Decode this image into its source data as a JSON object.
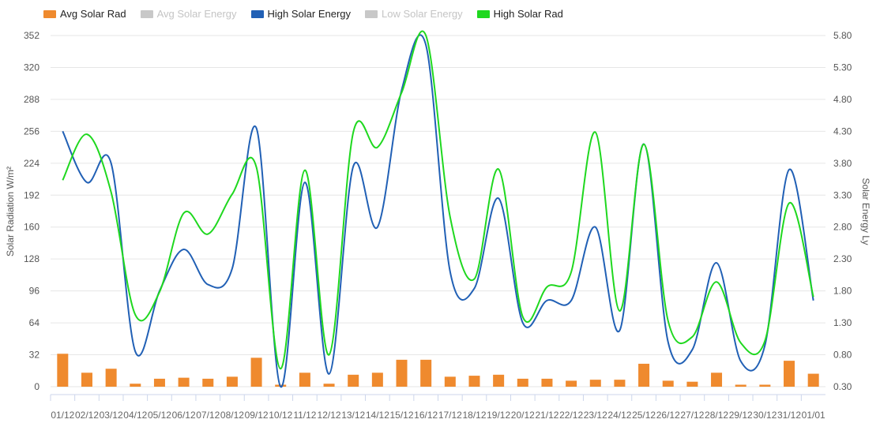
{
  "legend": [
    {
      "name": "Avg Solar Rad",
      "color": "#ef8a2e",
      "visible": true
    },
    {
      "name": "Avg Solar Energy",
      "color": "#c8c8c8",
      "visible": false
    },
    {
      "name": "High Solar Energy",
      "color": "#2160b5",
      "visible": true
    },
    {
      "name": "Low Solar Energy",
      "color": "#c8c8c8",
      "visible": false
    },
    {
      "name": "High Solar Rad",
      "color": "#1fd81f",
      "visible": true
    }
  ],
  "chart_data": {
    "type": "bar+line",
    "categories": [
      "01/12",
      "02/12",
      "03/12",
      "04/12",
      "05/12",
      "06/12",
      "07/12",
      "08/12",
      "09/12",
      "10/12",
      "11/12",
      "12/12",
      "13/12",
      "14/12",
      "15/12",
      "16/12",
      "17/12",
      "18/12",
      "19/12",
      "20/12",
      "21/12",
      "22/12",
      "23/12",
      "24/12",
      "25/12",
      "26/12",
      "27/12",
      "28/12",
      "29/12",
      "30/12",
      "31/12",
      "01/01"
    ],
    "ylabel_left": "Solar Radiation W/m²",
    "ylabel_right": "Solar Energy Ly",
    "ylim_left": [
      0,
      352
    ],
    "yticks_left": [
      "0",
      "32",
      "64",
      "96",
      "128",
      "160",
      "192",
      "224",
      "256",
      "288",
      "320",
      "352"
    ],
    "ylim_right": [
      0.3,
      5.8
    ],
    "yticks_right": [
      "0.30",
      "0.80",
      "1.30",
      "1.80",
      "2.30",
      "2.80",
      "3.30",
      "3.80",
      "4.30",
      "4.80",
      "5.30",
      "5.80"
    ],
    "series": [
      {
        "name": "Avg Solar Rad",
        "type": "bar",
        "axis": "left",
        "color": "#ef8a2e",
        "values": [
          33,
          14,
          18,
          3,
          8,
          9,
          8,
          10,
          29,
          2,
          14,
          3,
          12,
          14,
          27,
          27,
          10,
          11,
          12,
          8,
          8,
          6,
          7,
          7,
          23,
          6,
          5,
          14,
          2,
          2,
          26,
          13
        ]
      },
      {
        "name": "High Solar Energy",
        "type": "line",
        "axis": "right",
        "color": "#2160b5",
        "values": [
          4.3,
          3.5,
          3.8,
          0.85,
          1.8,
          2.45,
          1.9,
          2.15,
          4.35,
          0.3,
          3.5,
          0.5,
          3.75,
          2.8,
          4.95,
          5.65,
          2.1,
          1.84,
          3.25,
          1.3,
          1.65,
          1.65,
          2.8,
          1.18,
          4.1,
          1.0,
          0.88,
          2.24,
          0.7,
          0.95,
          3.7,
          1.65
        ]
      },
      {
        "name": "High Solar Rad",
        "type": "line",
        "axis": "left",
        "color": "#1fd81f",
        "values": [
          207,
          253,
          195,
          72,
          95,
          174,
          153,
          193,
          220,
          18,
          217,
          32,
          255,
          240,
          295,
          352,
          170,
          108,
          218,
          70,
          100,
          115,
          255,
          76,
          243,
          66,
          50,
          105,
          44,
          46,
          184,
          90
        ]
      }
    ],
    "grid": true
  }
}
